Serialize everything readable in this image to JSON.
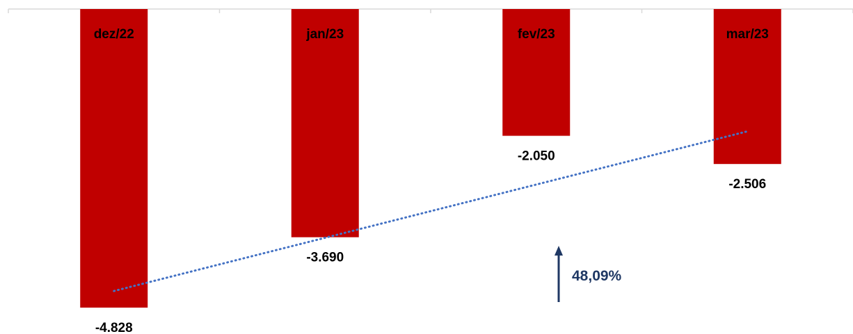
{
  "chart_data": {
    "type": "bar",
    "categories": [
      "dez/22",
      "jan/23",
      "fev/23",
      "mar/23"
    ],
    "values": [
      -4828,
      -3690,
      -2050,
      -2506
    ],
    "value_labels": [
      "-4.828",
      "-3.690",
      "-2.050",
      "-2.506"
    ],
    "ylim": [
      -4828,
      0
    ],
    "grid": false,
    "trendline": {
      "style": "dotted",
      "type": "linear"
    },
    "annotation": {
      "text": "48,09%",
      "arrow": "up"
    }
  },
  "colors": {
    "bar": "#c00000",
    "trendline": "#4472c4",
    "annotation": "#1f3864",
    "axis": "#d9d9d9"
  }
}
